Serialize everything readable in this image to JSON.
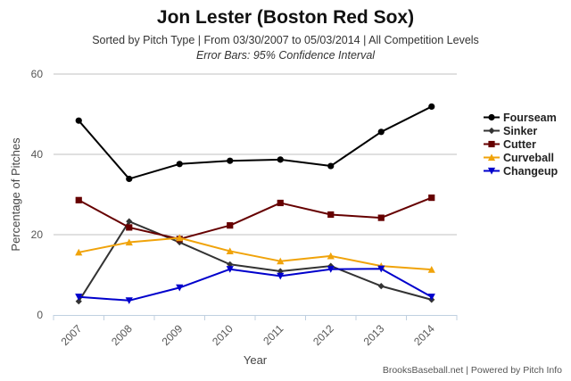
{
  "chart_data": {
    "type": "line",
    "title": "Jon Lester (Boston Red Sox)",
    "subtitle": "Sorted by Pitch Type | From 03/30/2007 to 05/03/2014 | All Competition Levels",
    "note": "Error Bars: 95% Confidence Interval",
    "xlabel": "Year",
    "ylabel": "Percentage of Pitches",
    "x": [
      "2007",
      "2008",
      "2009",
      "2010",
      "2011",
      "2012",
      "2013",
      "2014"
    ],
    "yticks": [
      "0",
      "20",
      "40",
      "60"
    ],
    "ylim": [
      0,
      60
    ],
    "grid": true,
    "legend_position": "right",
    "series": [
      {
        "name": "Fourseam",
        "color": "#000000",
        "marker": "circle",
        "values": [
          48.4,
          33.9,
          37.6,
          38.4,
          38.7,
          37.1,
          45.6,
          51.9
        ]
      },
      {
        "name": "Sinker",
        "color": "#333333",
        "marker": "diamond",
        "values": [
          3.4,
          23.3,
          18.1,
          12.6,
          10.9,
          12.2,
          7.2,
          3.8
        ]
      },
      {
        "name": "Cutter",
        "color": "#660000",
        "marker": "square",
        "values": [
          28.6,
          21.8,
          18.9,
          22.3,
          27.9,
          25.0,
          24.2,
          29.2
        ]
      },
      {
        "name": "Curveball",
        "color": "#f0a30a",
        "marker": "triangle-up",
        "values": [
          15.6,
          18.1,
          19.2,
          15.9,
          13.4,
          14.7,
          12.2,
          11.3
        ]
      },
      {
        "name": "Changeup",
        "color": "#0000cc",
        "marker": "triangle-down",
        "values": [
          4.5,
          3.6,
          6.8,
          11.4,
          9.7,
          11.4,
          11.5,
          4.5
        ]
      }
    ]
  },
  "footer": {
    "credit": "BrooksBaseball.net | Powered by Pitch Info"
  }
}
